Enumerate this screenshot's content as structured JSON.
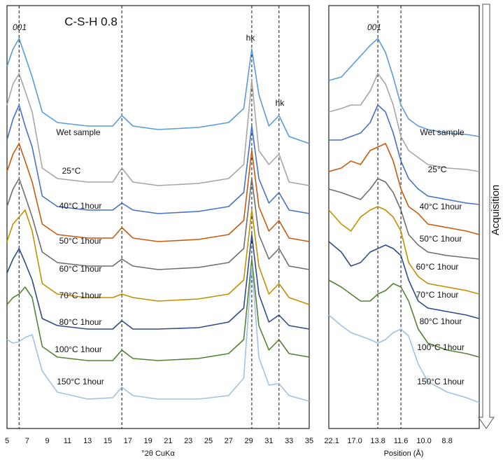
{
  "arrow_label": "Acquisition",
  "chart_data": [
    {
      "type": "line",
      "title": "C-S-H 0.8",
      "x_label": "°2θ CuKα",
      "annotations": [
        "001",
        "hk",
        "hk"
      ],
      "reference_lines": [
        6.2,
        16.4,
        29.3,
        32
      ],
      "xlim": [
        5,
        35
      ],
      "xticks": [
        5,
        7,
        9,
        11,
        13,
        15,
        17,
        19,
        21,
        23,
        25,
        27,
        29,
        31,
        33,
        35
      ],
      "ylim": [
        0,
        604
      ],
      "x": [
        5,
        5.6,
        6.2,
        6.8,
        7.5,
        8.5,
        10,
        13,
        15.5,
        16.4,
        17.5,
        20,
        24,
        27,
        28.5,
        29.3,
        30,
        31,
        32,
        33,
        35
      ],
      "series": [
        {
          "name": "Wet sample",
          "color": "#5b9bd5",
          "values": [
            517,
            542,
            557,
            532,
            502,
            452,
            437,
            432,
            432,
            447,
            432,
            427,
            430,
            437,
            457,
            542,
            477,
            432,
            447,
            417,
            407
          ]
        },
        {
          "name": "25°C",
          "color": "#a5a5a5",
          "values": [
            462,
            492,
            507,
            482,
            452,
            372,
            357,
            352,
            352,
            372,
            352,
            347,
            350,
            357,
            377,
            497,
            397,
            377,
            392,
            352,
            347
          ]
        },
        {
          "name": "40°C 1hour",
          "color": "#4472c4",
          "values": [
            412,
            442,
            462,
            432,
            402,
            332,
            317,
            312,
            312,
            322,
            312,
            307,
            310,
            317,
            337,
            432,
            357,
            322,
            337,
            312,
            307
          ]
        },
        {
          "name": "50°C 1hour",
          "color": "#c55a11",
          "values": [
            367,
            392,
            407,
            382,
            352,
            292,
            277,
            272,
            272,
            287,
            272,
            267,
            270,
            277,
            297,
            397,
            317,
            282,
            297,
            272,
            267
          ]
        },
        {
          "name": "60°C 1hour",
          "color": "#6e6e6e",
          "values": [
            317,
            342,
            357,
            332,
            302,
            252,
            237,
            232,
            232,
            242,
            232,
            227,
            230,
            237,
            257,
            357,
            277,
            242,
            257,
            232,
            227
          ]
        },
        {
          "name": "70°C 1hour",
          "color": "#bf9000",
          "values": [
            267,
            292,
            302,
            312,
            282,
            207,
            192,
            187,
            187,
            192,
            187,
            182,
            185,
            192,
            212,
            312,
            232,
            192,
            207,
            187,
            177
          ]
        },
        {
          "name": "80°C 1hour",
          "color": "#2f4b8a",
          "values": [
            222,
            242,
            257,
            237,
            212,
            157,
            147,
            142,
            142,
            154,
            142,
            142,
            144,
            152,
            172,
            277,
            192,
            152,
            162,
            147,
            142
          ]
        },
        {
          "name": "100°C 1hour",
          "color": "#548235",
          "values": [
            177,
            187,
            192,
            202,
            187,
            117,
            102,
            97,
            97,
            112,
            100,
            97,
            100,
            107,
            127,
            242,
            147,
            112,
            127,
            107,
            102
          ]
        },
        {
          "name": "150°C 1hour",
          "color": "#9dc3e6",
          "values": [
            127,
            122,
            124,
            130,
            134,
            82,
            52,
            42,
            44,
            59,
            47,
            42,
            42,
            47,
            72,
            232,
            102,
            62,
            64,
            47,
            39
          ]
        }
      ]
    },
    {
      "type": "line",
      "x_label": "Position (Å)",
      "annotations": [
        "001"
      ],
      "reference_lines": [
        6.4,
        7.6
      ],
      "xlim": [
        3.85,
        11.67
      ],
      "xticks": [
        {
          "value": 4.0,
          "label": "22.1"
        },
        {
          "value": 5.2,
          "label": "17.0"
        },
        {
          "value": 6.4,
          "label": "13.8"
        },
        {
          "value": 7.6,
          "label": "11.6"
        },
        {
          "value": 8.8,
          "label": "10.0"
        },
        {
          "value": 10.0,
          "label": "8.8"
        }
      ],
      "ylim": [
        0,
        604
      ],
      "x": [
        3.85,
        4.5,
        5,
        5.5,
        6,
        6.4,
        6.8,
        7.2,
        7.6,
        8,
        8.5,
        9,
        10,
        11,
        11.67
      ],
      "series": [
        {
          "name": "Wet sample",
          "color": "#5b9bd5",
          "values": [
            497,
            502,
            517,
            532,
            547,
            557,
            537,
            502,
            462,
            442,
            432,
            427,
            422,
            420,
            417
          ]
        },
        {
          "name": "25°C",
          "color": "#a5a5a5",
          "values": [
            452,
            457,
            462,
            462,
            482,
            507,
            492,
            462,
            417,
            397,
            387,
            377,
            372,
            370,
            367
          ]
        },
        {
          "name": "40°C 1hour",
          "color": "#4472c4",
          "values": [
            412,
            412,
            417,
            422,
            437,
            462,
            452,
            422,
            382,
            357,
            342,
            332,
            327,
            322,
            320
          ]
        },
        {
          "name": "50°C 1hour",
          "color": "#c55a11",
          "values": [
            367,
            372,
            382,
            377,
            397,
            402,
            407,
            382,
            342,
            317,
            307,
            292,
            287,
            282,
            277
          ]
        },
        {
          "name": "60°C 1hour",
          "color": "#6e6e6e",
          "values": [
            342,
            337,
            332,
            327,
            342,
            357,
            352,
            337,
            312,
            277,
            262,
            252,
            247,
            244,
            242
          ]
        },
        {
          "name": "70°C 1hour",
          "color": "#bf9000",
          "values": [
            312,
            292,
            282,
            302,
            312,
            317,
            312,
            302,
            282,
            237,
            217,
            207,
            202,
            197,
            192
          ]
        },
        {
          "name": "80°C 1hour",
          "color": "#2f4b8a",
          "values": [
            267,
            252,
            232,
            237,
            252,
            257,
            262,
            257,
            247,
            212,
            182,
            172,
            167,
            162,
            157
          ]
        },
        {
          "name": "100°C 1hour",
          "color": "#548235",
          "values": [
            212,
            202,
            192,
            182,
            182,
            192,
            197,
            207,
            202,
            182,
            142,
            122,
            112,
            107,
            102
          ]
        },
        {
          "name": "150°C 1hour",
          "color": "#9dc3e6",
          "values": [
            162,
            147,
            137,
            132,
            127,
            122,
            127,
            137,
            142,
            132,
            92,
            67,
            52,
            44,
            37
          ]
        }
      ]
    }
  ]
}
